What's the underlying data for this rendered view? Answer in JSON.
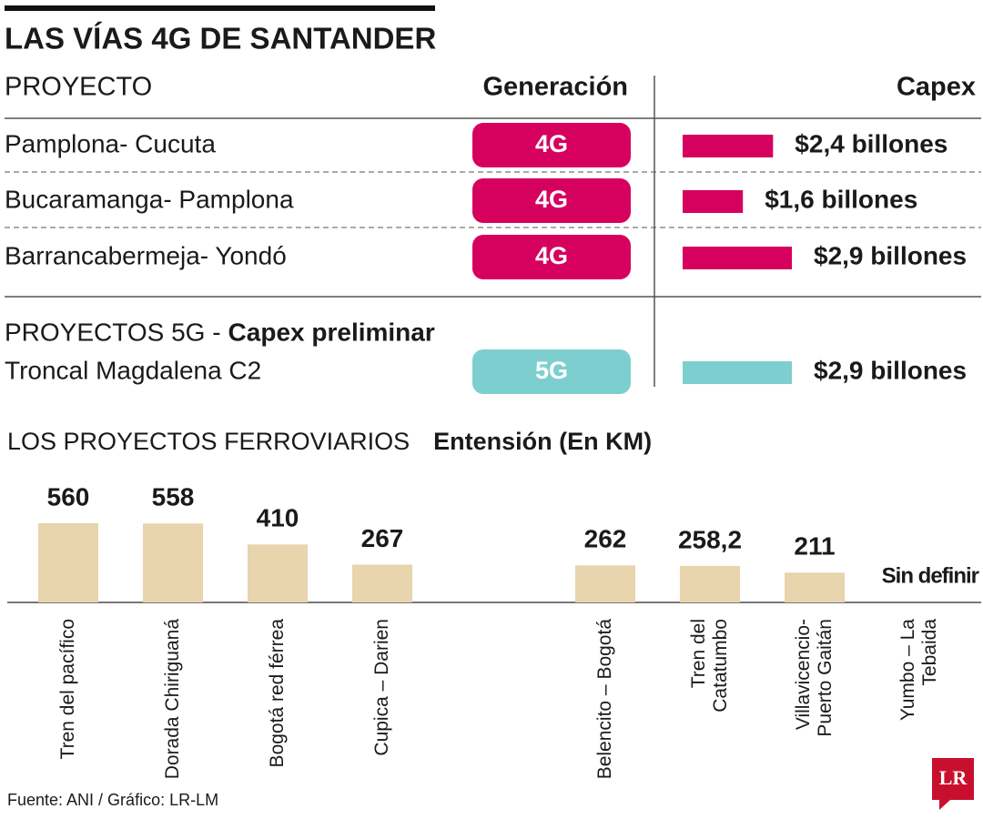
{
  "title": "LAS VÍAS 4G DE SANTANDER",
  "source": "Fuente: ANI / Gráfico: LR-LM",
  "logo": "LR",
  "chart_data": [
    {
      "type": "capex",
      "headers": [
        "PROYECTO",
        "Generación",
        "Capex"
      ],
      "section": "PROYECTOS 5G -",
      "section_bold": "Capex preliminar",
      "categories": [
        "Pamplona- Cucuta",
        "Bucaramanga- Pamplona",
        "Barrancabermeja- Yondó",
        "Troncal Magdalena C2"
      ],
      "generation": [
        "4G",
        "4G",
        "4G",
        "5G"
      ],
      "values": [
        2.4,
        1.6,
        2.9,
        2.9
      ],
      "value_labels": [
        "$2,4 billones",
        "$1,6 billones",
        "$2,9 billones",
        "$2,9 billones"
      ],
      "colors": [
        "#d6005f",
        "#d6005f",
        "#d6005f",
        "#7dcfcf"
      ]
    },
    {
      "type": "bar",
      "title": "LOS PROYECTOS FERROVIARIOS",
      "subtitle": "Entensión (En KM)",
      "categories": [
        "Tren del pacífico",
        "Dorada Chiriguaná",
        "Bogotá red férrea",
        "Cupica – Darien",
        "Belencito – Bogotá",
        "Tren del Catatumbo",
        "Villavicencio- Puerto Gaitán",
        "Yumbo – La Tebaida"
      ],
      "values": [
        560,
        558,
        410,
        267,
        262,
        258.2,
        211,
        null
      ],
      "value_labels": [
        "560",
        "558",
        "410",
        "267",
        "262",
        "258,2",
        "211",
        "Sin definir"
      ],
      "color": "#e8d4ad"
    }
  ]
}
